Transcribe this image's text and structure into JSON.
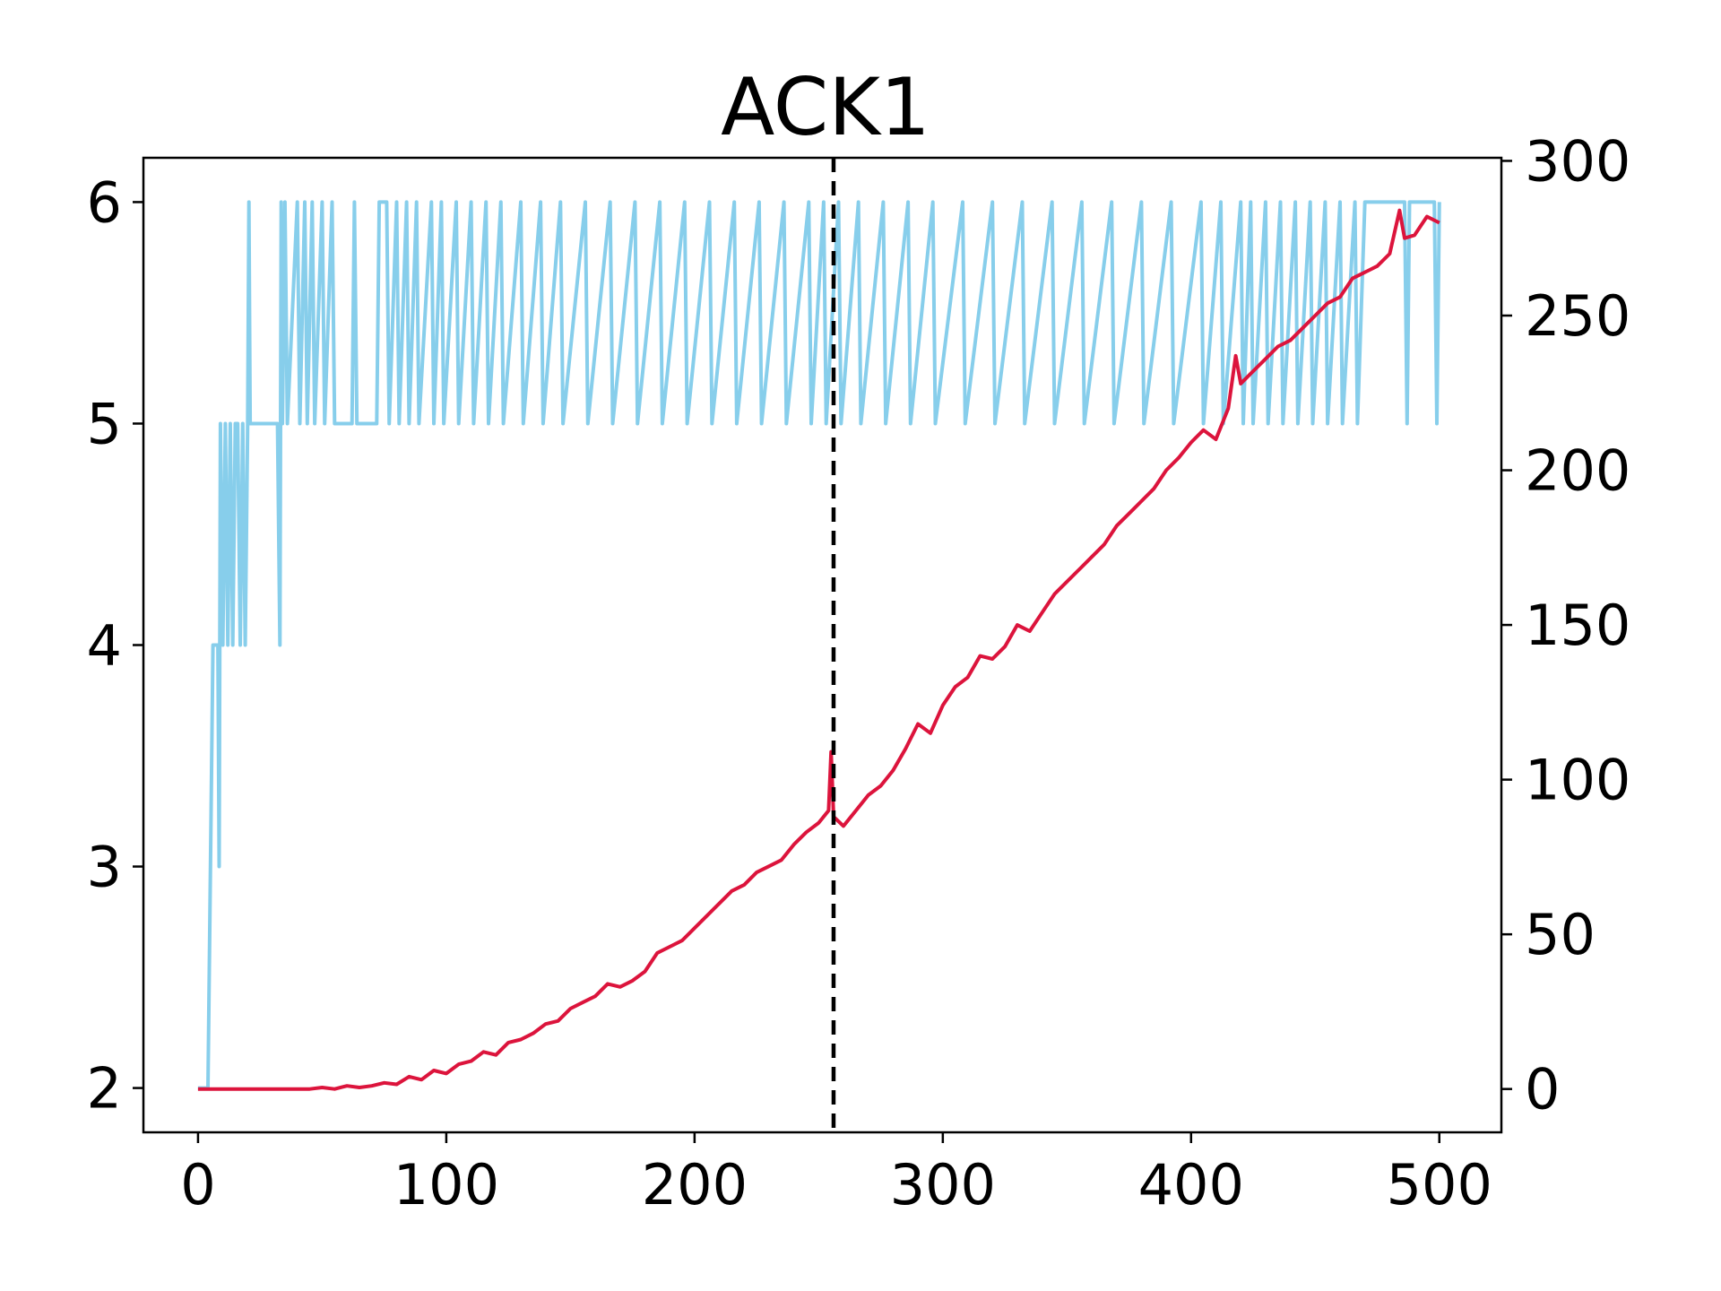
{
  "chart_data": {
    "type": "line",
    "title": "ACK1",
    "xlabel": "",
    "ylabel": "",
    "y2label": "",
    "xlim": [
      -22,
      525
    ],
    "ylim": [
      1.8,
      6.2
    ],
    "y2lim": [
      -14,
      301
    ],
    "x_ticks": [
      0,
      100,
      200,
      300,
      400,
      500
    ],
    "y_ticks": [
      2,
      3,
      4,
      5,
      6
    ],
    "y2_ticks": [
      0,
      50,
      100,
      150,
      200,
      250,
      300
    ],
    "vline_x": 256,
    "grid": false,
    "series": [
      {
        "axis": "left",
        "color": "#87CEEB",
        "points": [
          [
            0,
            2
          ],
          [
            4,
            2
          ],
          [
            6,
            4
          ],
          [
            8,
            4
          ],
          [
            8.5,
            3
          ],
          [
            9,
            5
          ],
          [
            10,
            4
          ],
          [
            11,
            5
          ],
          [
            12,
            4
          ],
          [
            13,
            5
          ],
          [
            14,
            4
          ],
          [
            15,
            5
          ],
          [
            16,
            5
          ],
          [
            17,
            4
          ],
          [
            18,
            5
          ],
          [
            19,
            4
          ],
          [
            20,
            5
          ],
          [
            20.5,
            6
          ],
          [
            21,
            5
          ],
          [
            32,
            5
          ],
          [
            33,
            4
          ],
          [
            33.5,
            6
          ],
          [
            34,
            5
          ],
          [
            35,
            6
          ],
          [
            36,
            5
          ],
          [
            40,
            6
          ],
          [
            41,
            5
          ],
          [
            43,
            6
          ],
          [
            44,
            5
          ],
          [
            46,
            6
          ],
          [
            47,
            5
          ],
          [
            50,
            6
          ],
          [
            51,
            5
          ],
          [
            54,
            6
          ],
          [
            55,
            5
          ],
          [
            62,
            5
          ],
          [
            63,
            6
          ],
          [
            64,
            5
          ],
          [
            72,
            5
          ],
          [
            73,
            6
          ],
          [
            76,
            6
          ],
          [
            77,
            5
          ],
          [
            80,
            6
          ],
          [
            81,
            5
          ],
          [
            84,
            6
          ],
          [
            85,
            5
          ],
          [
            88,
            6
          ],
          [
            89,
            5
          ],
          [
            94,
            6
          ],
          [
            95,
            5
          ],
          [
            98,
            6
          ],
          [
            99,
            5
          ],
          [
            104,
            6
          ],
          [
            105,
            5
          ],
          [
            110,
            6
          ],
          [
            111,
            5
          ],
          [
            116,
            6
          ],
          [
            117,
            5
          ],
          [
            122,
            6
          ],
          [
            123,
            5
          ],
          [
            130,
            6
          ],
          [
            131,
            5
          ],
          [
            138,
            6
          ],
          [
            139,
            5
          ],
          [
            146,
            6
          ],
          [
            147,
            5
          ],
          [
            156,
            6
          ],
          [
            157,
            5
          ],
          [
            166,
            6
          ],
          [
            167,
            5
          ],
          [
            176,
            6
          ],
          [
            177,
            5
          ],
          [
            186,
            6
          ],
          [
            187,
            5
          ],
          [
            196,
            6
          ],
          [
            197,
            5
          ],
          [
            206,
            6
          ],
          [
            207,
            5
          ],
          [
            216,
            6
          ],
          [
            217,
            5
          ],
          [
            226,
            6
          ],
          [
            227,
            5
          ],
          [
            236,
            6
          ],
          [
            237,
            5
          ],
          [
            246,
            6
          ],
          [
            247,
            5
          ],
          [
            252,
            6
          ],
          [
            253,
            5
          ],
          [
            258,
            6
          ],
          [
            259,
            5
          ],
          [
            266,
            6
          ],
          [
            267,
            5
          ],
          [
            276,
            6
          ],
          [
            277,
            5
          ],
          [
            286,
            6
          ],
          [
            287,
            5
          ],
          [
            296,
            6
          ],
          [
            297,
            5
          ],
          [
            308,
            6
          ],
          [
            309,
            5
          ],
          [
            320,
            6
          ],
          [
            321,
            5
          ],
          [
            332,
            6
          ],
          [
            333,
            5
          ],
          [
            344,
            6
          ],
          [
            345,
            5
          ],
          [
            356,
            6
          ],
          [
            357,
            5
          ],
          [
            368,
            6
          ],
          [
            369,
            5
          ],
          [
            380,
            6
          ],
          [
            381,
            5
          ],
          [
            392,
            6
          ],
          [
            393,
            5
          ],
          [
            404,
            6
          ],
          [
            405,
            5
          ],
          [
            412,
            6
          ],
          [
            413,
            5
          ],
          [
            420,
            6
          ],
          [
            421,
            5
          ],
          [
            424,
            6
          ],
          [
            425,
            5
          ],
          [
            430,
            6
          ],
          [
            431,
            5
          ],
          [
            436,
            6
          ],
          [
            437,
            5
          ],
          [
            442,
            6
          ],
          [
            443,
            5
          ],
          [
            448,
            6
          ],
          [
            449,
            5
          ],
          [
            454,
            6
          ],
          [
            455,
            5
          ],
          [
            460,
            6
          ],
          [
            461,
            5
          ],
          [
            466,
            6
          ],
          [
            467,
            5
          ],
          [
            470,
            6
          ],
          [
            486,
            6
          ],
          [
            487,
            5
          ],
          [
            488,
            6
          ],
          [
            498,
            6
          ],
          [
            499,
            5
          ],
          [
            500,
            6
          ]
        ]
      },
      {
        "axis": "right",
        "color": "#DC143C",
        "points": [
          [
            0,
            0
          ],
          [
            45,
            0
          ],
          [
            50,
            0.5
          ],
          [
            55,
            0
          ],
          [
            60,
            1
          ],
          [
            65,
            0.5
          ],
          [
            70,
            1
          ],
          [
            75,
            2
          ],
          [
            80,
            1.5
          ],
          [
            85,
            4
          ],
          [
            90,
            3
          ],
          [
            95,
            6
          ],
          [
            100,
            5
          ],
          [
            105,
            8
          ],
          [
            110,
            9
          ],
          [
            115,
            12
          ],
          [
            120,
            11
          ],
          [
            125,
            15
          ],
          [
            130,
            16
          ],
          [
            135,
            18
          ],
          [
            140,
            21
          ],
          [
            145,
            22
          ],
          [
            150,
            26
          ],
          [
            155,
            28
          ],
          [
            160,
            30
          ],
          [
            165,
            34
          ],
          [
            170,
            33
          ],
          [
            175,
            35
          ],
          [
            180,
            38
          ],
          [
            185,
            44
          ],
          [
            190,
            46
          ],
          [
            195,
            48
          ],
          [
            200,
            52
          ],
          [
            205,
            56
          ],
          [
            210,
            60
          ],
          [
            215,
            64
          ],
          [
            220,
            66
          ],
          [
            225,
            70
          ],
          [
            230,
            72
          ],
          [
            235,
            74
          ],
          [
            240,
            79
          ],
          [
            245,
            83
          ],
          [
            250,
            86
          ],
          [
            254,
            90
          ],
          [
            255,
            109
          ],
          [
            256,
            88
          ],
          [
            260,
            85
          ],
          [
            265,
            90
          ],
          [
            270,
            95
          ],
          [
            275,
            98
          ],
          [
            280,
            103
          ],
          [
            285,
            110
          ],
          [
            290,
            118
          ],
          [
            295,
            115
          ],
          [
            300,
            124
          ],
          [
            305,
            130
          ],
          [
            310,
            133
          ],
          [
            315,
            140
          ],
          [
            320,
            139
          ],
          [
            325,
            143
          ],
          [
            330,
            150
          ],
          [
            335,
            148
          ],
          [
            340,
            154
          ],
          [
            345,
            160
          ],
          [
            350,
            164
          ],
          [
            355,
            168
          ],
          [
            360,
            172
          ],
          [
            365,
            176
          ],
          [
            370,
            182
          ],
          [
            375,
            186
          ],
          [
            380,
            190
          ],
          [
            385,
            194
          ],
          [
            390,
            200
          ],
          [
            395,
            204
          ],
          [
            400,
            209
          ],
          [
            405,
            213
          ],
          [
            410,
            210
          ],
          [
            415,
            220
          ],
          [
            418,
            237
          ],
          [
            420,
            228
          ],
          [
            425,
            232
          ],
          [
            430,
            236
          ],
          [
            435,
            240
          ],
          [
            440,
            242
          ],
          [
            445,
            246
          ],
          [
            450,
            250
          ],
          [
            455,
            254
          ],
          [
            460,
            256
          ],
          [
            465,
            262
          ],
          [
            470,
            264
          ],
          [
            475,
            266
          ],
          [
            480,
            270
          ],
          [
            484,
            284
          ],
          [
            486,
            275
          ],
          [
            490,
            276
          ],
          [
            495,
            282
          ],
          [
            500,
            280
          ]
        ]
      }
    ]
  }
}
